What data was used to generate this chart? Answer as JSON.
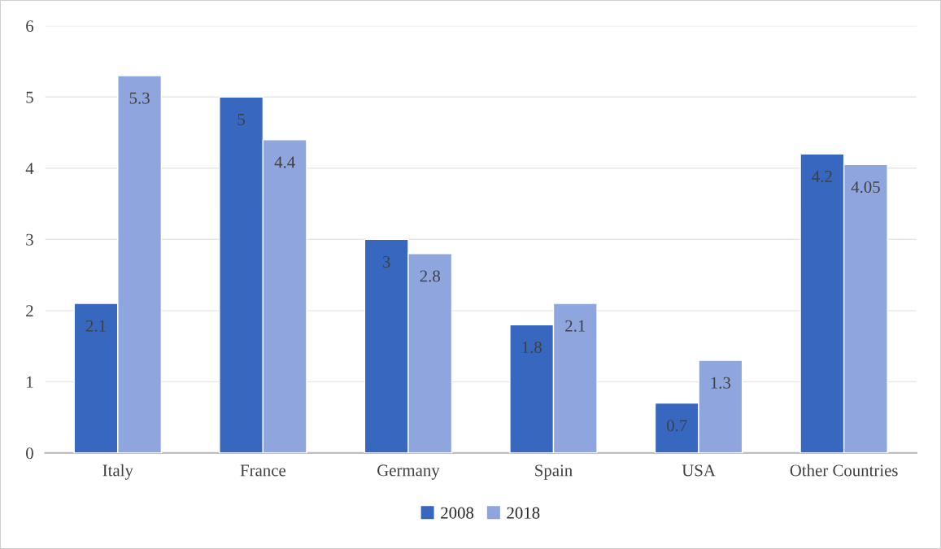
{
  "chart_data": {
    "type": "bar",
    "categories": [
      "Italy",
      "France",
      "Germany",
      "Spain",
      "USA",
      "Other Countries"
    ],
    "series": [
      {
        "name": "2008",
        "color": "#3867bf",
        "values": [
          2.1,
          5,
          3,
          1.8,
          0.7,
          4.2
        ]
      },
      {
        "name": "2018",
        "color": "#8ea5de",
        "values": [
          5.3,
          4.4,
          2.8,
          2.1,
          1.3,
          4.05
        ]
      }
    ],
    "ylim": [
      0,
      6
    ],
    "yticks": [
      0,
      1,
      2,
      3,
      4,
      5,
      6
    ],
    "grid": "y",
    "legend": "bottom",
    "data_labels": true
  }
}
